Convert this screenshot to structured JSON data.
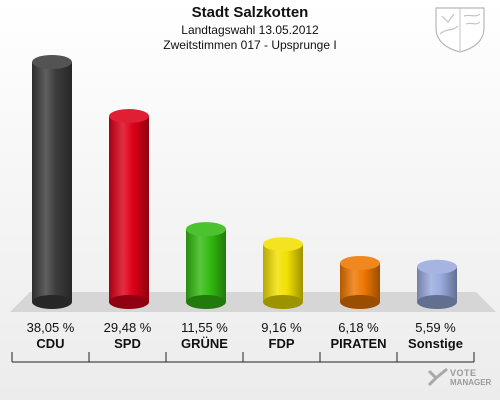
{
  "header": {
    "title": "Stadt Salzkotten",
    "subtitle1": "Landtagswahl 13.05.2012",
    "subtitle2": "Zweitstimmen 017 - Upsprunge I"
  },
  "chart_data": {
    "type": "bar",
    "categories": [
      "CDU",
      "SPD",
      "GRÜNE",
      "FDP",
      "PIRATEN",
      "Sonstige"
    ],
    "values": [
      38.05,
      29.48,
      11.55,
      9.16,
      6.18,
      5.59
    ],
    "value_labels": [
      "38,05 %",
      "29,48 %",
      "11,55 %",
      "9,16 %",
      "6,18 %",
      "5,59 %"
    ],
    "colors": [
      "#3c3c3c",
      "#dd0018",
      "#33bb11",
      "#f2e000",
      "#ee7700",
      "#99aadd"
    ],
    "ylim": [
      0,
      38.05
    ],
    "grid": false,
    "legend": "none"
  },
  "watermark": {
    "line1": "VOTE",
    "line2": "MANAGER"
  },
  "icons": {
    "crest": "coat-of-arms-icon",
    "watermark": "vote-manager-logo-icon"
  }
}
